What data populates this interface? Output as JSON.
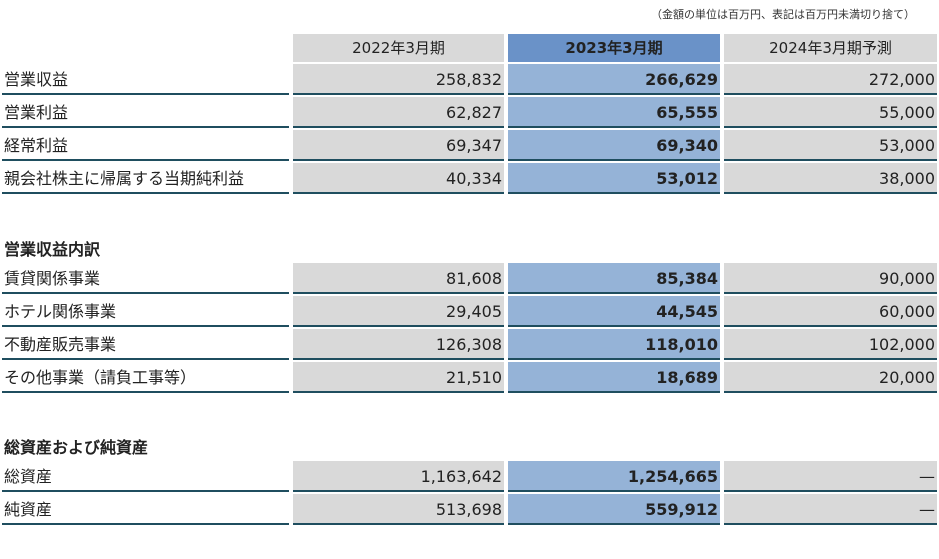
{
  "note": "（金額の単位は百万円、表記は百万円未満切り捨て）",
  "headers": [
    "2022年3月期",
    "2023年3月期",
    "2024年3月期予測"
  ],
  "summary": [
    {
      "label": "営業収益",
      "v1": "258,832",
      "v2": "266,629",
      "v3": "272,000"
    },
    {
      "label": "営業利益",
      "v1": "62,827",
      "v2": "65,555",
      "v3": "55,000"
    },
    {
      "label": "経常利益",
      "v1": "69,347",
      "v2": "69,340",
      "v3": "53,000"
    },
    {
      "label": "親会社株主に帰属する当期純利益",
      "v1": "40,334",
      "v2": "53,012",
      "v3": "38,000"
    }
  ],
  "section2_title": "営業収益内訳",
  "breakdown": [
    {
      "label": "賃貸関係事業",
      "v1": "81,608",
      "v2": "85,384",
      "v3": "90,000"
    },
    {
      "label": "ホテル関係事業",
      "v1": "29,405",
      "v2": "44,545",
      "v3": "60,000"
    },
    {
      "label": "不動産販売事業",
      "v1": "126,308",
      "v2": "118,010",
      "v3": "102,000"
    },
    {
      "label": "その他事業（請負工事等）",
      "v1": "21,510",
      "v2": "18,689",
      "v3": "20,000"
    }
  ],
  "section3_title": "総資産および純資産",
  "assets": [
    {
      "label": "総資産",
      "v1": "1,163,642",
      "v2": "1,254,665",
      "v3": "—"
    },
    {
      "label": "純資産",
      "v1": "513,698",
      "v2": "559,912",
      "v3": "—"
    }
  ]
}
